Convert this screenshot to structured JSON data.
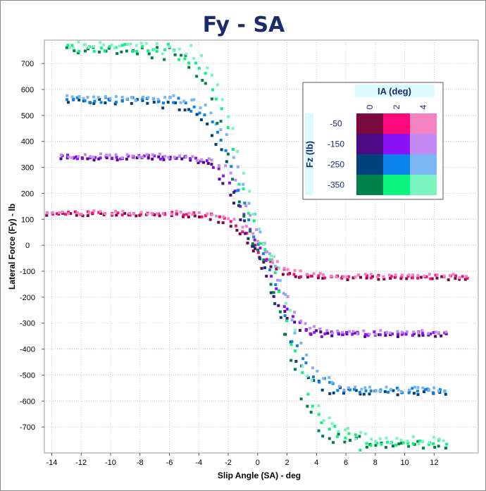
{
  "chart_data": {
    "type": "scatter",
    "title": "Fy - SA",
    "xlabel": "Slip Angle (SA) - deg",
    "ylabel": "Lateral Force (Fy) - lb",
    "xlim": [
      -14.5,
      15
    ],
    "ylim": [
      -800,
      790
    ],
    "xticks": [
      -14,
      -12,
      -10,
      -8,
      -6,
      -4,
      -2,
      0,
      2,
      4,
      6,
      8,
      10,
      12
    ],
    "yticks": [
      700,
      600,
      500,
      400,
      300,
      200,
      100,
      0,
      -100,
      -200,
      -300,
      -400,
      -500,
      -600,
      -700
    ],
    "grid": true,
    "legend": {
      "placement": "top-right",
      "title_ia": "IA (deg)",
      "title_fz": "Fz (lb)",
      "ia_values": [
        "0",
        "2",
        "4"
      ],
      "fz_values": [
        "-50",
        "-150",
        "-250",
        "-350"
      ],
      "colors": [
        [
          "#7a0a3e",
          "#ff0a7a",
          "#f582c0"
        ],
        [
          "#4a0b84",
          "#8a10f5",
          "#c38af5"
        ],
        [
          "#00417a",
          "#0a84ec",
          "#7ab6f2"
        ],
        [
          "#00804a",
          "#0af57e",
          "#7af5c0"
        ]
      ]
    },
    "series": [
      {
        "fz": "-50",
        "peak": 122,
        "x0": -0.2,
        "xs": 1.85,
        "curve": 0.9,
        "spread": 7,
        "xmin": -14.5,
        "xmax": 14.5
      },
      {
        "fz": "-150",
        "peak": 340,
        "x0": 0.0,
        "xs": 2.2,
        "curve": 1.2,
        "spread": 8,
        "xmin": -13.4,
        "xmax": 13.0
      },
      {
        "fz": "-250",
        "peak": 560,
        "x0": 0.15,
        "xs": 2.9,
        "curve": 1.3,
        "spread": 10,
        "xmin": -13.0,
        "xmax": 13.0
      },
      {
        "fz": "-350",
        "peak": 760,
        "x0": 0.3,
        "xs": 3.3,
        "curve": 1.4,
        "spread": 14,
        "xmin": -13.0,
        "xmax": 13.0
      }
    ]
  }
}
